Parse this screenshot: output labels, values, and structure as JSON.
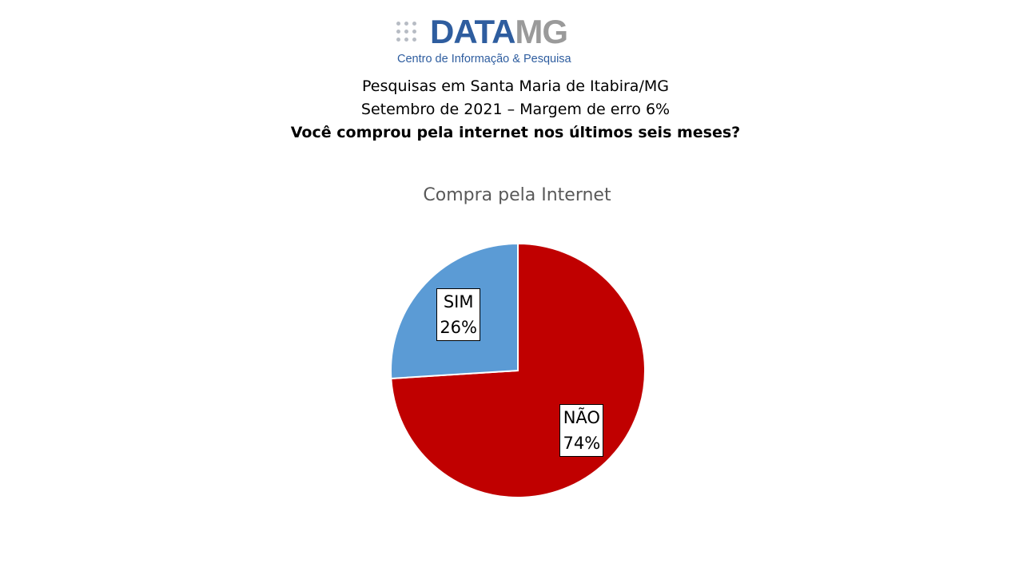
{
  "logo": {
    "word_primary": "DATA",
    "word_secondary": "MG",
    "subtitle": "Centro de Informação & Pesquisa",
    "primary_color": "#2e5d9f",
    "secondary_color": "#9a9a9a"
  },
  "header": {
    "line1": "Pesquisas em Santa Maria de Itabira/MG",
    "line2": "Setembro de 2021 – Margem de erro 6%",
    "question": "Você comprou pela internet nos últimos seis meses?"
  },
  "chart_data": {
    "type": "pie",
    "title": "Compra pela Internet",
    "slices": [
      {
        "label": "NÃO",
        "value": 74,
        "display": "74%",
        "color": "#c00000"
      },
      {
        "label": "SIM",
        "value": 26,
        "display": "26%",
        "color": "#5b9bd5"
      }
    ],
    "start_angle_deg": 0,
    "direction": "clockwise",
    "legend": "none",
    "data_labels": "category-and-percent"
  }
}
